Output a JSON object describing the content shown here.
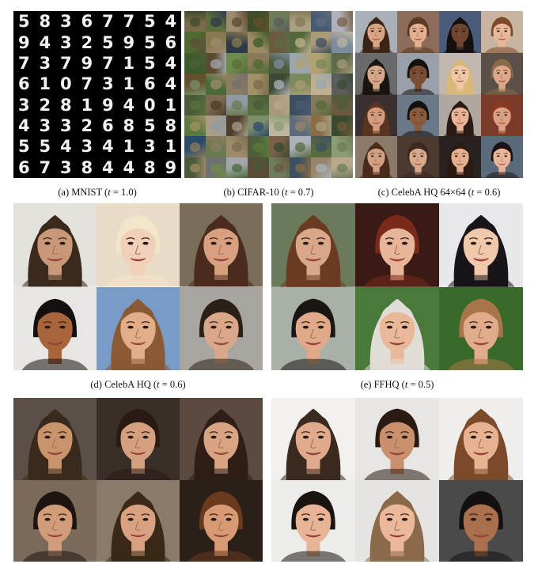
{
  "mnist_digits": [
    [
      "5",
      "8",
      "3",
      "6",
      "7",
      "7",
      "5",
      "4"
    ],
    [
      "9",
      "4",
      "3",
      "2",
      "5",
      "9",
      "5",
      "6"
    ],
    [
      "7",
      "3",
      "7",
      "9",
      "7",
      "1",
      "5",
      "4"
    ],
    [
      "6",
      "1",
      "0",
      "7",
      "3",
      "1",
      "6",
      "4"
    ],
    [
      "3",
      "2",
      "8",
      "1",
      "9",
      "4",
      "0",
      "1"
    ],
    [
      "4",
      "3",
      "3",
      "2",
      "6",
      "8",
      "5",
      "8"
    ],
    [
      "5",
      "5",
      "4",
      "3",
      "4",
      "1",
      "3",
      "1"
    ],
    [
      "6",
      "7",
      "3",
      "8",
      "4",
      "4",
      "8",
      "9"
    ]
  ],
  "cifar_colors": [
    "#7a6a4a",
    "#5c6e3a",
    "#9a8d70",
    "#3f4c2a",
    "#6e7c58",
    "#a8a080",
    "#4a5a72",
    "#b0b0b8",
    "#4e6b30",
    "#88784e",
    "#2e3a4c",
    "#9c8a62",
    "#6b5a3c",
    "#53693a",
    "#aa9b78",
    "#7c8c9c",
    "#3a5a2a",
    "#5a4a30",
    "#6c8c4a",
    "#8a7a5c",
    "#4c5c3c",
    "#9aa6b0",
    "#b2a070",
    "#5e6a48",
    "#62502c",
    "#4a6a3a",
    "#8c7c60",
    "#a49068",
    "#3c4a34",
    "#7a8a5a",
    "#c0b090",
    "#5c5c5c",
    "#4a5a38",
    "#7a6c50",
    "#909aa4",
    "#5a7040",
    "#a6987a",
    "#3e4e60",
    "#86785a",
    "#6a5a40",
    "#5a7a3c",
    "#a89c86",
    "#4c3e2c",
    "#7c8e6a",
    "#bcb6a0",
    "#5c6c7c",
    "#8a6c44",
    "#3a4a2e",
    "#2c4a6a",
    "#6a7a50",
    "#9c8c6c",
    "#4e5e3a",
    "#7a6048",
    "#aab2bc",
    "#5a6a40",
    "#8c9c74",
    "#4a5a3a",
    "#707070",
    "#a2a6aa",
    "#5c4c38",
    "#6c7c5c",
    "#3c5064",
    "#98866a",
    "#b8a88a"
  ],
  "faces_celeba64": [
    {
      "skin": "#d8a582",
      "hair": "#3a2418",
      "bg": "#a9b0b8"
    },
    {
      "skin": "#e2b08e",
      "hair": "#5a3a22",
      "bg": "#8c6c5a"
    },
    {
      "skin": "#6e4630",
      "hair": "#151010",
      "bg": "#4a5a7a"
    },
    {
      "skin": "#e8b898",
      "hair": "#7a4a2a",
      "bg": "#c8b4a0"
    },
    {
      "skin": "#d6a88a",
      "hair": "#1a1410",
      "bg": "#6a6a6a"
    },
    {
      "skin": "#7a4e34",
      "hair": "#141010",
      "bg": "#9aa0a8"
    },
    {
      "skin": "#f0c8a8",
      "hair": "#d8b878",
      "bg": "#c0b8b0"
    },
    {
      "skin": "#dcaa88",
      "hair": "#8a6a48",
      "bg": "#5a5048"
    },
    {
      "skin": "#d49c7c",
      "hair": "#5a3420",
      "bg": "#3a3030"
    },
    {
      "skin": "#8a5a3c",
      "hair": "#121010",
      "bg": "#6a7888"
    },
    {
      "skin": "#e8b494",
      "hair": "#2a1a14",
      "bg": "#b0a8a0"
    },
    {
      "skin": "#dca284",
      "hair": "#8a3a20",
      "bg": "#7a3a2a"
    },
    {
      "skin": "#d2a082",
      "hair": "#4a2a1a",
      "bg": "#8a7a6a"
    },
    {
      "skin": "#d8aa8c",
      "hair": "#3a2a20",
      "bg": "#4a3a30"
    },
    {
      "skin": "#e4b090",
      "hair": "#2a1a12",
      "bg": "#2a2220"
    },
    {
      "skin": "#eab69a",
      "hair": "#1a1212",
      "bg": "#5a6a7a"
    }
  ],
  "faces_celebahq": [
    {
      "skin": "#c89878",
      "hair": "#3a2a1e",
      "bg": "#e4e0dc"
    },
    {
      "skin": "#f0d0b8",
      "hair": "#f2e6c8",
      "bg": "#e8dcc8"
    },
    {
      "skin": "#d8a080",
      "hair": "#4a2c1c",
      "bg": "#7a6e5a"
    },
    {
      "skin": "#a8643a",
      "hair": "#141010",
      "bg": "#e8e6e2"
    },
    {
      "skin": "#e2ae8a",
      "hair": "#8a5a34",
      "bg": "#7a9ac8"
    },
    {
      "skin": "#d8a888",
      "hair": "#2a2018",
      "bg": "#a8a4a0"
    }
  ],
  "faces_ffhq": [
    {
      "skin": "#d8a888",
      "hair": "#6a3a22",
      "bg": "#6a7a5a"
    },
    {
      "skin": "#e8b49a",
      "hair": "#7a2a1a",
      "bg": "#3a1a14"
    },
    {
      "skin": "#f0c8ac",
      "hair": "#181418",
      "bg": "#e8e8ea"
    },
    {
      "skin": "#e0aa8a",
      "hair": "#1a1614",
      "bg": "#a8b0a8"
    },
    {
      "skin": "#e8b898",
      "hair": "#e0dcd6",
      "bg": "#4a7a3a"
    },
    {
      "skin": "#e0ac8c",
      "hair": "#a8744a",
      "bg": "#3a6a2a"
    }
  ],
  "faces_celebahq2": [
    {
      "skin": "#c8946c",
      "hair": "#3a2a1e",
      "bg": "#5a5048"
    },
    {
      "skin": "#d4a080",
      "hair": "#2a1a14",
      "bg": "#3a2e28"
    },
    {
      "skin": "#d8a484",
      "hair": "#2e1e16",
      "bg": "#5a4a40"
    },
    {
      "skin": "#d09c7a",
      "hair": "#1e1410",
      "bg": "#7a6a5a"
    },
    {
      "skin": "#d8a282",
      "hair": "#3a2818",
      "bg": "#8a7a6a"
    },
    {
      "skin": "#d89a74",
      "hair": "#6a3a1e",
      "bg": "#2a2018"
    }
  ],
  "faces_ffhq2": [
    {
      "skin": "#e0aa8c",
      "hair": "#3a2a20",
      "bg": "#f2f0ee"
    },
    {
      "skin": "#c8906c",
      "hair": "#2a1a12",
      "bg": "#e8e6e4"
    },
    {
      "skin": "#e6b292",
      "hair": "#7a4a2a",
      "bg": "#f0eeec"
    },
    {
      "skin": "#e8b496",
      "hair": "#1a1410",
      "bg": "#ececea"
    },
    {
      "skin": "#ecb89a",
      "hair": "#8a6a4a",
      "bg": "#e6e4e2"
    },
    {
      "skin": "#a8704c",
      "hair": "#141010",
      "bg": "#4a4a4a"
    }
  ],
  "captions": {
    "mnist": {
      "name": "(a) MNIST (",
      "var": "t",
      "value": " = 1.0)"
    },
    "cifar": {
      "name": "(b) CIFAR-10 (",
      "var": "t",
      "value": " = 0.7)"
    },
    "celeba64": {
      "name": "(c) CelebA HQ 64×64 (",
      "var": "t",
      "value": " = 0.6)"
    },
    "celebahq": {
      "name": "(d) CelebA HQ (",
      "var": "t",
      "value": " = 0.6)"
    },
    "ffhq": {
      "name": "(e) FFHQ (",
      "var": "t",
      "value": " = 0.5)"
    }
  }
}
